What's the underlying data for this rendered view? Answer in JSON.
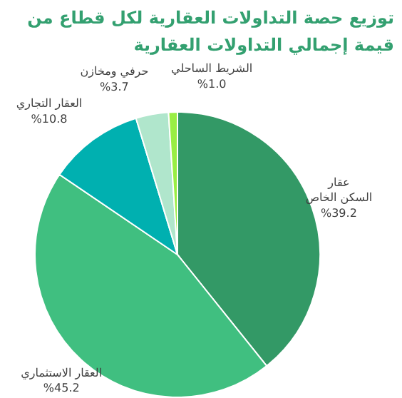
{
  "chart_data": {
    "type": "pie",
    "title": "توزيع حصة التداولات العقارية لكل قطاع من قيمة إجمالي التداولات العقارية",
    "categories": [
      "عقار\nالسكن الخاص",
      "العقار الاستثماري",
      "العقار التجاري",
      "حرفي ومخازن",
      "الشريط الساحلي"
    ],
    "values": [
      39.2,
      45.2,
      10.8,
      3.7,
      1.0
    ],
    "value_labels": [
      "%39.2",
      "%45.2",
      "%10.8",
      "%3.7",
      "%1.0"
    ],
    "colors": [
      "#339966",
      "#40bf80",
      "#00b0b0",
      "#b0e6cc",
      "#99ee44"
    ]
  }
}
